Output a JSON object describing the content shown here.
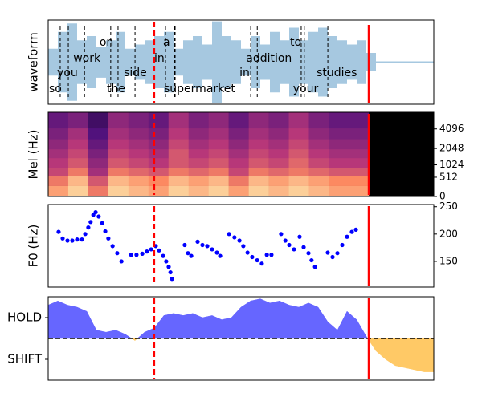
{
  "vlines": [
    {
      "x": 27.5,
      "color": "#ff0000",
      "style": "dashed"
    },
    {
      "x": 83.1,
      "color": "#ff0000",
      "style": "solid"
    }
  ],
  "chart_data": [
    {
      "type": "waveform",
      "ylabel": "waveform",
      "color": "#a6c8e0",
      "xlim": [
        0,
        100
      ],
      "ylim": [
        -1,
        1
      ],
      "x": [
        0,
        2.5,
        5,
        7.5,
        10,
        12.5,
        15,
        17.5,
        20,
        22.5,
        25,
        27.5,
        30,
        32.5,
        35,
        37.5,
        40,
        42.5,
        45,
        47.5,
        50,
        52.5,
        55,
        57.5,
        60,
        62.5,
        65,
        67.5,
        70,
        72.5,
        75,
        77.5,
        80,
        82.5,
        85,
        87.5,
        90,
        92.5,
        95,
        97.5,
        100
      ],
      "values": [
        0.3,
        0.7,
        0.9,
        0.5,
        0.6,
        0.35,
        0.5,
        0.7,
        0.3,
        0.4,
        0.5,
        0.6,
        0.7,
        0.3,
        0.5,
        0.6,
        0.4,
        0.95,
        0.6,
        0.5,
        0.3,
        0.6,
        0.4,
        0.7,
        0.5,
        0.8,
        0.5,
        0.7,
        0.8,
        0.6,
        0.5,
        0.4,
        0.5,
        0.2,
        0,
        0,
        0,
        0,
        0,
        0,
        0
      ],
      "words": [
        {
          "text": "so",
          "x": 0.2
        },
        {
          "text": "you",
          "x": 2.3
        },
        {
          "text": "work",
          "x": 6.5
        },
        {
          "text": "on",
          "x": 13.3
        },
        {
          "text": "the",
          "x": 15.2
        },
        {
          "text": "side",
          "x": 19.6
        },
        {
          "text": "in",
          "x": 27.5
        },
        {
          "text": "a",
          "x": 29.8
        },
        {
          "text": "supermarket",
          "x": 30.0
        },
        {
          "text": "in",
          "x": 49.6
        },
        {
          "text": "addition",
          "x": 51.3
        },
        {
          "text": "to",
          "x": 62.7
        },
        {
          "text": "your",
          "x": 63.5
        },
        {
          "text": "studies",
          "x": 69.6
        }
      ]
    },
    {
      "type": "spectrogram",
      "ylabel": "Mel (Hz)",
      "colormap": "magma",
      "background": "#000000",
      "xlim": [
        0,
        100
      ],
      "ylim": [
        0,
        7000
      ],
      "yscale": "mel",
      "ytick_side": "right",
      "yticks": [
        0,
        512,
        1024,
        2048,
        4096
      ],
      "x_edges": [
        0,
        5.2,
        10.4,
        15.6,
        20.8,
        26,
        31.2,
        36.4,
        41.6,
        46.8,
        52,
        57.2,
        62.4,
        67.6,
        72.8,
        78,
        83.1
      ],
      "y_edges": [
        0,
        250,
        550,
        900,
        1400,
        2000,
        2900,
        4200,
        7000
      ],
      "values": [
        [
          0.8,
          0.9,
          0.7,
          0.9,
          0.85,
          0.8,
          0.9,
          0.85,
          0.9,
          0.8,
          0.9,
          0.85,
          0.9,
          0.85,
          0.8,
          0.8
        ],
        [
          0.7,
          0.85,
          0.6,
          0.85,
          0.8,
          0.75,
          0.85,
          0.8,
          0.85,
          0.7,
          0.85,
          0.8,
          0.85,
          0.8,
          0.75,
          0.75
        ],
        [
          0.55,
          0.7,
          0.45,
          0.7,
          0.65,
          0.6,
          0.7,
          0.65,
          0.7,
          0.55,
          0.7,
          0.65,
          0.7,
          0.65,
          0.6,
          0.6
        ],
        [
          0.5,
          0.6,
          0.4,
          0.6,
          0.55,
          0.5,
          0.6,
          0.55,
          0.6,
          0.5,
          0.6,
          0.55,
          0.65,
          0.55,
          0.5,
          0.5
        ],
        [
          0.45,
          0.55,
          0.35,
          0.55,
          0.5,
          0.45,
          0.6,
          0.5,
          0.55,
          0.45,
          0.55,
          0.5,
          0.6,
          0.5,
          0.45,
          0.45
        ],
        [
          0.4,
          0.5,
          0.3,
          0.5,
          0.45,
          0.4,
          0.55,
          0.45,
          0.5,
          0.4,
          0.5,
          0.45,
          0.55,
          0.45,
          0.4,
          0.4
        ],
        [
          0.35,
          0.45,
          0.25,
          0.45,
          0.4,
          0.35,
          0.5,
          0.4,
          0.45,
          0.35,
          0.45,
          0.4,
          0.5,
          0.4,
          0.35,
          0.35
        ],
        [
          0.3,
          0.35,
          0.2,
          0.4,
          0.35,
          0.3,
          0.45,
          0.35,
          0.4,
          0.3,
          0.4,
          0.35,
          0.45,
          0.35,
          0.3,
          0.3
        ]
      ]
    },
    {
      "type": "scatter",
      "ylabel": "F0 (Hz)",
      "color": "#0000ff",
      "xlim": [
        0,
        100
      ],
      "ylim": [
        103,
        254
      ],
      "ytick_side": "right",
      "yticks": [
        150,
        200,
        250
      ],
      "x": [
        2.7,
        3.75,
        5,
        6.25,
        7.5,
        8.75,
        9.6,
        10.4,
        11,
        11.7,
        12.3,
        13.1,
        14,
        14.8,
        15.6,
        16.7,
        17.9,
        19,
        21.5,
        22.9,
        24.4,
        25.6,
        26.7,
        27.9,
        28.75,
        29.8,
        30.6,
        31.25,
        31.7,
        32.1,
        35.4,
        36.25,
        37.1,
        38.75,
        40,
        41.25,
        42.5,
        43.75,
        44.6,
        46.9,
        48.3,
        49.6,
        50.6,
        51.7,
        52.9,
        54.2,
        55.4,
        56.7,
        57.9,
        60.4,
        61.5,
        62.5,
        63.75,
        65.2,
        66.25,
        67.5,
        68.3,
        69.2,
        72.5,
        73.75,
        75,
        76.25,
        77.5,
        78.75,
        79.8
      ],
      "values": [
        204,
        192,
        188,
        188,
        190,
        190,
        200,
        212,
        222,
        235,
        240,
        232,
        220,
        205,
        192,
        178,
        165,
        150,
        162,
        162,
        164,
        168,
        172,
        178,
        170,
        160,
        150,
        140,
        130,
        118,
        180,
        165,
        160,
        186,
        180,
        178,
        172,
        166,
        160,
        200,
        194,
        188,
        178,
        166,
        158,
        152,
        146,
        162,
        162,
        200,
        188,
        180,
        172,
        195,
        176,
        165,
        152,
        140,
        166,
        158,
        165,
        180,
        195,
        204,
        208
      ]
    },
    {
      "type": "area",
      "color_positive": "#6666ff",
      "color_negative": "#ffc966",
      "hline": 0,
      "xlim": [
        0,
        100
      ],
      "ylim": [
        -2,
        2
      ],
      "ytick_side": "left",
      "yticks": [
        {
          "value": 1,
          "label": "HOLD"
        },
        {
          "value": -1,
          "label": "SHIFT"
        }
      ],
      "x": [
        0,
        2.5,
        5,
        7.5,
        10,
        12.5,
        15,
        17.5,
        20,
        22.5,
        25,
        27.5,
        30,
        32.5,
        35,
        37.5,
        40,
        42.5,
        45,
        47.5,
        50,
        52.5,
        55,
        57.5,
        60,
        62.5,
        65,
        67.5,
        70,
        72.5,
        75,
        77.5,
        80,
        82.5,
        85,
        87.5,
        90,
        92.5,
        95,
        97.5,
        100
      ],
      "values": [
        1.6,
        1.8,
        1.6,
        1.5,
        1.3,
        0.4,
        0.3,
        0.4,
        0.2,
        -0.1,
        0.3,
        0.5,
        1.1,
        1.2,
        1.1,
        1.2,
        1.0,
        1.1,
        0.9,
        1.0,
        1.5,
        1.8,
        1.9,
        1.7,
        1.8,
        1.6,
        1.5,
        1.7,
        1.5,
        0.8,
        0.4,
        1.3,
        0.9,
        0.1,
        -0.6,
        -1.0,
        -1.3,
        -1.4,
        -1.5,
        -1.6,
        -1.6
      ]
    }
  ]
}
